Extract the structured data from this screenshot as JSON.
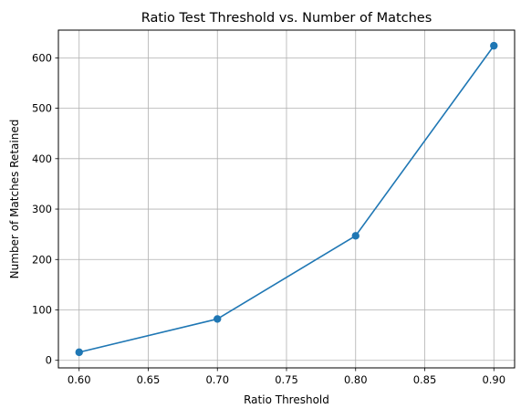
{
  "chart_data": {
    "type": "line",
    "title": "Ratio Test Threshold vs. Number of Matches",
    "xlabel": "Ratio Threshold",
    "ylabel": "Number of Matches Retained",
    "xlim": [
      0.585,
      0.915
    ],
    "ylim": [
      -15,
      655
    ],
    "xticks": [
      0.6,
      0.65,
      0.7,
      0.75,
      0.8,
      0.85,
      0.9
    ],
    "xtick_labels": [
      "0.60",
      "0.65",
      "0.70",
      "0.75",
      "0.80",
      "0.85",
      "0.90"
    ],
    "yticks": [
      0,
      100,
      200,
      300,
      400,
      500,
      600
    ],
    "ytick_labels": [
      "0",
      "100",
      "200",
      "300",
      "400",
      "500",
      "600"
    ],
    "grid": true,
    "series": [
      {
        "x": [
          0.6,
          0.7,
          0.8,
          0.9
        ],
        "y": [
          16,
          82,
          247,
          624
        ],
        "color": "#1f77b4",
        "marker": "circle"
      }
    ]
  }
}
